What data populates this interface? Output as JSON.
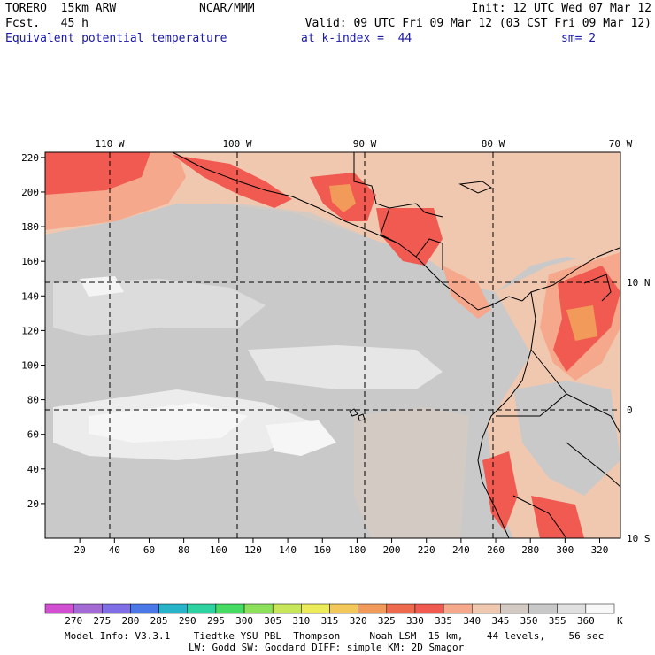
{
  "header": {
    "model": "TORERO  15km ARW",
    "center": "NCAR/MMM",
    "init": "Init: 12 UTC Wed 07 Mar 12",
    "fcst": "Fcst.   45 h",
    "valid": "Valid: 09 UTC Fri 09 Mar 12 (03 CST Fri 09 Mar 12)",
    "field": "Equivalent potential temperature",
    "level": "at k-index =  44",
    "smooth": "sm= 2"
  },
  "axes": {
    "top_lon_labels": [
      "110 W",
      "100 W",
      "90 W",
      "80 W",
      "70 W"
    ],
    "right_lat_labels": [
      "10 N",
      "0",
      "10 S"
    ],
    "left_ticks": [
      "20",
      "40",
      "60",
      "80",
      "100",
      "120",
      "140",
      "160",
      "180",
      "200",
      "220"
    ],
    "bottom_ticks": [
      "20",
      "40",
      "60",
      "80",
      "100",
      "120",
      "140",
      "160",
      "180",
      "200",
      "220",
      "240",
      "260",
      "280",
      "300",
      "320"
    ]
  },
  "colorbar": {
    "labels": [
      "270",
      "275",
      "280",
      "285",
      "290",
      "295",
      "300",
      "305",
      "310",
      "315",
      "320",
      "325",
      "330",
      "335",
      "340",
      "345",
      "350",
      "355",
      "360"
    ],
    "unit": "K",
    "colors": [
      "#d24fd2",
      "#a36ad6",
      "#7f6ee6",
      "#4a78e6",
      "#27b4c8",
      "#2ed2a0",
      "#46dc64",
      "#8ce05a",
      "#c8e65a",
      "#ecec5a",
      "#f2c85a",
      "#f29a5a",
      "#ee6a4e",
      "#f05a50",
      "#f5a88c",
      "#f0c8b0",
      "#d4cac4",
      "#c8c8c8",
      "#e0e0e0",
      "#f8f8f8"
    ]
  },
  "footer": {
    "line1": "Model Info: V3.3.1    Tiedtke YSU PBL  Thompson     Noah LSM  15 km,    44 levels,    56 sec",
    "line2": "LW: Godd SW: Goddard DIFF: simple KM: 2D Smagor"
  }
}
